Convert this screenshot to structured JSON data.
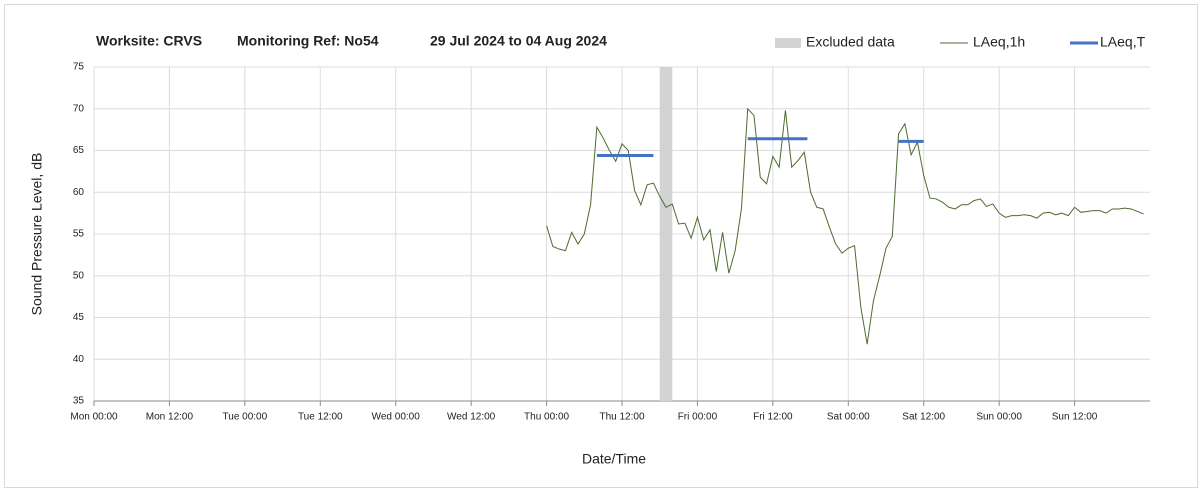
{
  "chart_data": {
    "type": "line",
    "title_parts": [
      "Worksite: CRVS",
      "Monitoring Ref: No54",
      "29 Jul 2024 to 04 Aug 2024"
    ],
    "x_label": "Date/Time",
    "y_label": "Sound Pressure Level, dB",
    "xlim": [
      0,
      168
    ],
    "xticks": [
      {
        "value": 0,
        "label": "Mon 00:00"
      },
      {
        "value": 12,
        "label": "Mon 12:00"
      },
      {
        "value": 24,
        "label": "Tue 00:00"
      },
      {
        "value": 36,
        "label": "Tue 12:00"
      },
      {
        "value": 48,
        "label": "Wed 00:00"
      },
      {
        "value": 60,
        "label": "Wed 12:00"
      },
      {
        "value": 72,
        "label": "Thu 00:00"
      },
      {
        "value": 84,
        "label": "Thu 12:00"
      },
      {
        "value": 96,
        "label": "Fri 00:00"
      },
      {
        "value": 108,
        "label": "Fri 12:00"
      },
      {
        "value": 120,
        "label": "Sat 00:00"
      },
      {
        "value": 132,
        "label": "Sat 12:00"
      },
      {
        "value": 144,
        "label": "Sun 00:00"
      },
      {
        "value": 156,
        "label": "Sun 12:00"
      }
    ],
    "ylim": [
      35,
      75
    ],
    "yticks": [
      35,
      40,
      45,
      50,
      55,
      60,
      65,
      70,
      75
    ],
    "grid": true,
    "excluded": {
      "name": "Excluded data",
      "color": "#d3d3d3",
      "ranges": [
        [
          90,
          92
        ]
      ]
    },
    "series": [
      {
        "name": "LAeq,1h",
        "color": "#4e6b2e",
        "x": [
          72,
          73,
          74,
          75,
          76,
          77,
          78,
          79,
          80,
          81,
          82,
          83,
          84,
          85,
          86,
          87,
          88,
          89,
          90,
          91,
          92,
          93,
          94,
          95,
          96,
          97,
          98,
          99,
          100,
          101,
          102,
          103,
          104,
          105,
          106,
          107,
          108,
          109,
          110,
          111,
          112,
          113,
          114,
          115,
          116,
          117,
          118,
          119,
          120,
          121,
          122,
          123,
          124,
          125,
          126,
          127,
          128,
          129,
          130,
          131,
          132,
          133,
          134,
          135,
          136,
          137,
          138,
          139,
          140,
          141,
          142,
          143,
          144,
          145,
          146,
          147,
          148,
          149,
          150,
          151,
          152,
          153,
          154,
          155,
          156,
          157,
          158,
          159,
          160,
          161,
          162,
          163,
          164,
          165,
          166,
          167
        ],
        "values": [
          56.0,
          53.5,
          53.2,
          53.0,
          55.2,
          53.8,
          55.0,
          58.5,
          67.8,
          66.5,
          65.0,
          63.7,
          65.8,
          65.0,
          60.2,
          58.5,
          60.9,
          61.1,
          59.5,
          58.2,
          58.6,
          56.2,
          56.3,
          54.5,
          57.0,
          54.3,
          55.5,
          50.5,
          55.2,
          50.3,
          53.0,
          58.0,
          70.0,
          69.2,
          61.8,
          61.0,
          64.3,
          63.0,
          69.8,
          63.0,
          63.8,
          64.8,
          60.0,
          58.2,
          58.0,
          55.8,
          53.8,
          52.7,
          53.3,
          53.6,
          46.2,
          41.8,
          47.0,
          50.0,
          53.3,
          54.7,
          67.0,
          68.2,
          64.5,
          66.0,
          62.0,
          59.3,
          59.2,
          58.8,
          58.2,
          58.0,
          58.5,
          58.5,
          59.0,
          59.2,
          58.3,
          58.6,
          57.5,
          57.0,
          57.2,
          57.2,
          57.3,
          57.2,
          56.9,
          57.5,
          57.6,
          57.3,
          57.5,
          57.2,
          58.2,
          57.6,
          57.7,
          57.8,
          57.8,
          57.5,
          58.0,
          58.0,
          58.1,
          58.0,
          57.7,
          57.4
        ]
      },
      {
        "name": "LAeq,T",
        "color": "#4472c4",
        "segments": [
          {
            "x": [
              80,
              89
            ],
            "value": 64.4
          },
          {
            "x": [
              104,
              113.5
            ],
            "value": 66.4
          },
          {
            "x": [
              128,
              132
            ],
            "value": 66.1
          }
        ]
      }
    ],
    "legend": "top-right"
  }
}
